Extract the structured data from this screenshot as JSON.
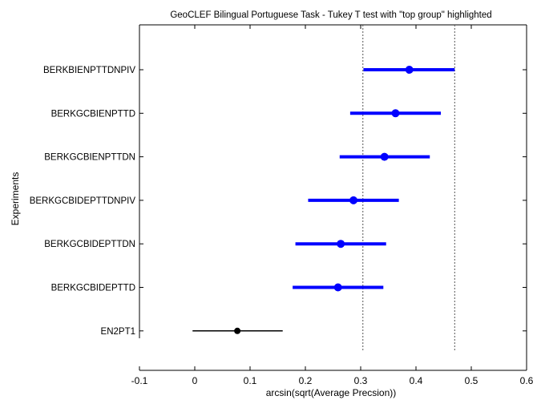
{
  "chart_data": {
    "type": "scatter",
    "title": "GeoCLEF Bilingual Portuguese Task - Tukey T test with \"top group\" highlighted",
    "xlabel": "arcsin(sqrt(Average Precsion))",
    "ylabel": "Experiments",
    "xlim": [
      -0.1,
      0.6
    ],
    "xticks": [
      "-0.1",
      "0",
      "0.1",
      "0.2",
      "0.3",
      "0.4",
      "0.5",
      "0.6"
    ],
    "xtick_values": [
      -0.1,
      0,
      0.1,
      0.2,
      0.3,
      0.4,
      0.5,
      0.6
    ],
    "grid": false,
    "reference_lines": [
      0.304,
      0.47
    ],
    "categories": [
      "BERKBIENPTTDNPIV",
      "BERKGCBIENPTTD",
      "BERKGCBIENPTTDN",
      "BERKGCBIDEPTTDNPIV",
      "BERKGCBIDEPTTDN",
      "BERKGCBIDEPTTD",
      "EN2PT1"
    ],
    "means": [
      0.388,
      0.363,
      0.343,
      0.287,
      0.264,
      0.259,
      0.077
    ],
    "lower": [
      0.305,
      0.281,
      0.262,
      0.205,
      0.182,
      0.177,
      -0.004
    ],
    "upper": [
      0.47,
      0.445,
      0.425,
      0.369,
      0.346,
      0.341,
      0.159
    ],
    "top_group": [
      true,
      true,
      true,
      true,
      true,
      true,
      false
    ],
    "colors": {
      "top_group": "#0000ff",
      "other": "#000000",
      "reference_line": "#555555"
    }
  }
}
